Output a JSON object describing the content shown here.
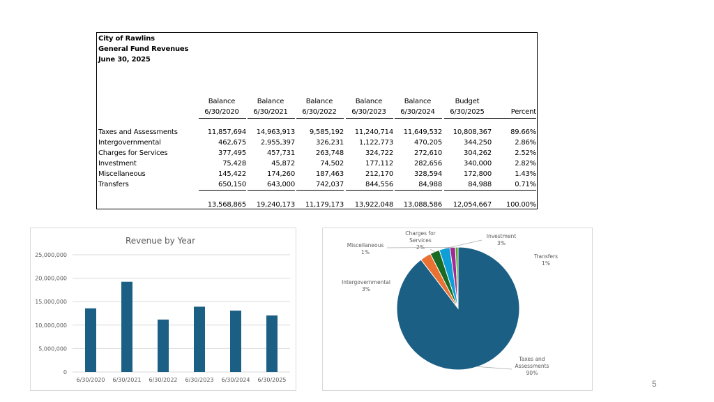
{
  "table": {
    "title_lines": [
      "City of Rawlins",
      "General Fund Revenues",
      "June 30, 2025"
    ],
    "columns": [
      {
        "line1": "Balance",
        "line2": "6/30/2020"
      },
      {
        "line1": "Balance",
        "line2": "6/30/2021"
      },
      {
        "line1": "Balance",
        "line2": "6/30/2022"
      },
      {
        "line1": "Balance",
        "line2": "6/30/2023"
      },
      {
        "line1": "Balance",
        "line2": "6/30/2024"
      },
      {
        "line1": "Budget",
        "line2": "6/30/2025"
      },
      {
        "line1": "",
        "line2": "Percent"
      }
    ],
    "rows": [
      {
        "label": "Taxes and Assessments",
        "values": [
          "11,857,694",
          "14,963,913",
          "9,585,192",
          "11,240,714",
          "11,649,532",
          "10,808,367",
          "89.66%"
        ]
      },
      {
        "label": "Intergovernmental",
        "values": [
          "462,675",
          "2,955,397",
          "326,231",
          "1,122,773",
          "470,205",
          "344,250",
          "2.86%"
        ]
      },
      {
        "label": "Charges for Services",
        "values": [
          "377,495",
          "457,731",
          "263,748",
          "324,722",
          "272,610",
          "304,262",
          "2.52%"
        ]
      },
      {
        "label": "Investment",
        "values": [
          "75,428",
          "45,872",
          "74,502",
          "177,112",
          "282,656",
          "340,000",
          "2.82%"
        ]
      },
      {
        "label": "Miscellaneous",
        "values": [
          "145,422",
          "174,260",
          "187,463",
          "212,170",
          "328,594",
          "172,800",
          "1.43%"
        ]
      },
      {
        "label": "Transfers",
        "values": [
          "650,150",
          "643,000",
          "742,037",
          "844,556",
          "84,988",
          "84,988",
          "0.71%"
        ]
      }
    ],
    "totals": [
      "13,568,865",
      "19,240,173",
      "11,179,173",
      "13,922,048",
      "13,088,586",
      "12,054,667",
      "100.00%"
    ]
  },
  "chart_data": [
    {
      "type": "bar",
      "title": "Revenue by Year",
      "categories": [
        "6/30/2020",
        "6/30/2021",
        "6/30/2022",
        "6/30/2023",
        "6/30/2024",
        "6/30/2025"
      ],
      "values": [
        13568865,
        19240173,
        11179173,
        13922048,
        13088586,
        12054667
      ],
      "ylim": [
        0,
        25000000
      ],
      "yticks": [
        0,
        5000000,
        10000000,
        15000000,
        20000000,
        25000000
      ],
      "ytick_labels": [
        "0",
        "5,000,000",
        "10,000,000",
        "15,000,000",
        "20,000,000",
        "25,000,000"
      ],
      "grid": true,
      "legend": "none",
      "color": "#1b5f85"
    },
    {
      "type": "pie",
      "slices": [
        {
          "label": "Taxes and Assessments",
          "percent_label": "90%",
          "value": 89.66,
          "color": "#1b5f85"
        },
        {
          "label": "Intergovernmental",
          "percent_label": "3%",
          "value": 2.86,
          "color": "#e97132"
        },
        {
          "label": "Charges for Services",
          "percent_label": "2%",
          "value": 2.52,
          "color": "#196b24"
        },
        {
          "label": "Investment",
          "percent_label": "3%",
          "value": 2.82,
          "color": "#0f9ed5"
        },
        {
          "label": "Miscellaneous",
          "percent_label": "1%",
          "value": 1.43,
          "color": "#a02b93"
        },
        {
          "label": "Transfers",
          "percent_label": "1%",
          "value": 0.71,
          "color": "#4ea72e"
        }
      ],
      "legend": "none"
    }
  ],
  "page": {
    "number": "5"
  }
}
